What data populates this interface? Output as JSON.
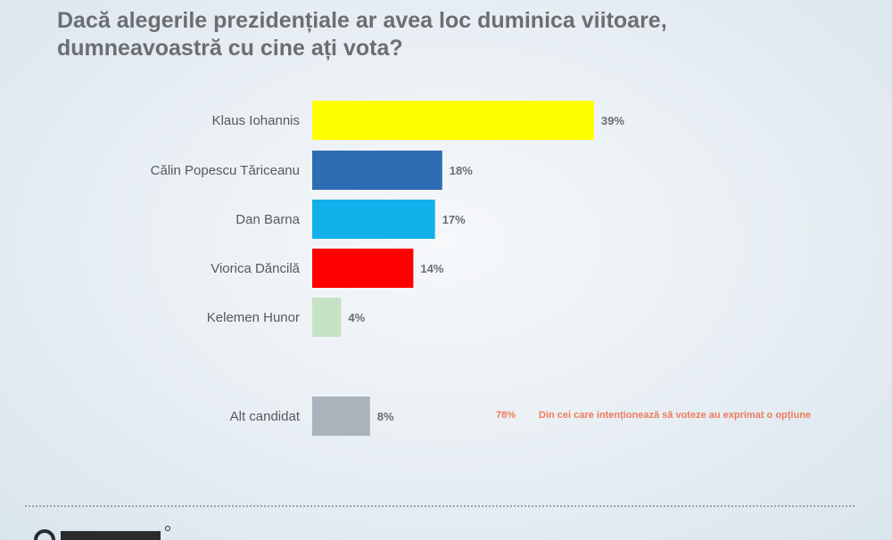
{
  "title_line1": "Dacă alegerile prezidențiale ar avea loc duminica viitoare,",
  "title_line2": "dumneavoastră cu cine ați vota?",
  "note": {
    "value": "78%",
    "text": "Din cei care intenționează să voteze au exprimat o opțiune"
  },
  "colors": {
    "accent_note": "#ef7b5c",
    "bars": [
      "#ffff00",
      "#2e6db4",
      "#12b0ea",
      "#ff0000",
      "#c6e2c4",
      "#aab2bb"
    ]
  },
  "chart_data": {
    "type": "bar",
    "orientation": "horizontal",
    "categories": [
      "Klaus Iohannis",
      "Călin Popescu Tăriceanu",
      "Dan Barna",
      "Viorica Dăncilă",
      "Kelemen Hunor",
      "Alt candidat"
    ],
    "values": [
      39,
      18,
      17,
      14,
      4,
      8
    ],
    "value_labels": [
      "39%",
      "18%",
      "17%",
      "14%",
      "4%",
      "8%"
    ],
    "unit": "%",
    "xlim": [
      0,
      40
    ],
    "grid": false,
    "legend": "none"
  }
}
